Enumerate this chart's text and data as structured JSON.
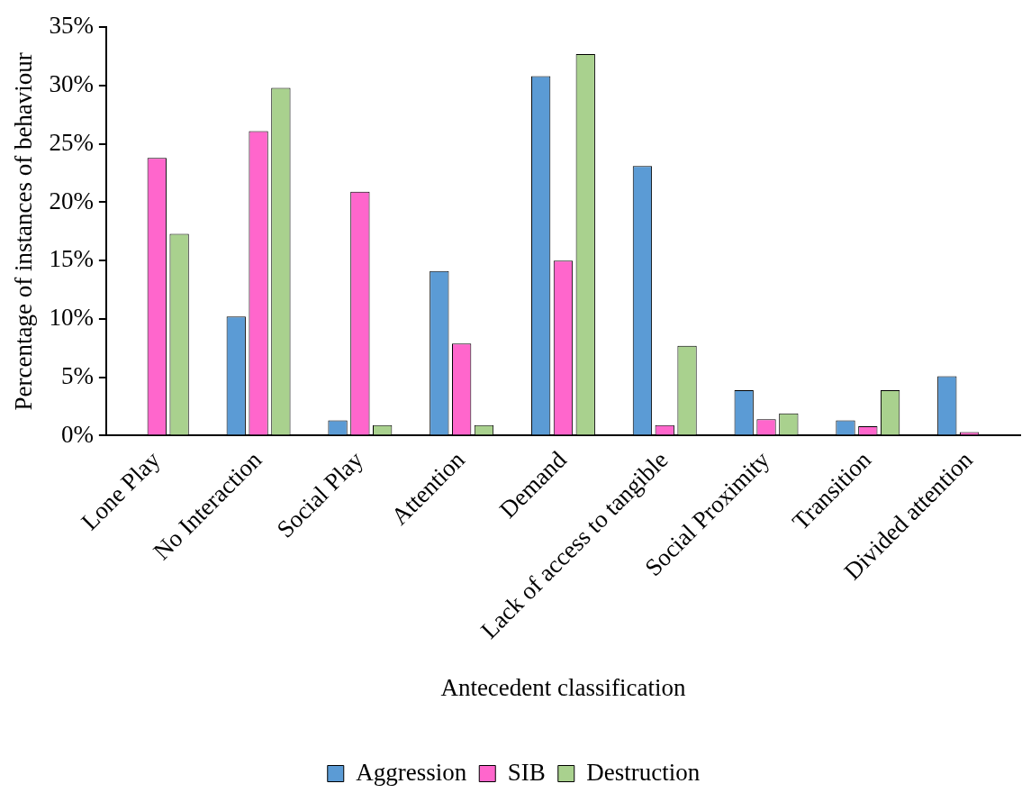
{
  "chart_data": {
    "type": "bar",
    "xlabel": "Antecedent classification",
    "ylabel": "Percentage of instances of behaviour",
    "categories": [
      "Lone Play",
      "No Interaction",
      "Social Play",
      "Attention",
      "Demand",
      "Lack of access to tangible",
      "Social Proximity",
      "Transition",
      "Divided attention"
    ],
    "series": [
      {
        "name": "Aggression",
        "color": "#5b9bd5",
        "values": [
          0,
          10.2,
          1.3,
          14.1,
          30.8,
          23.1,
          3.9,
          1.3,
          5.1
        ]
      },
      {
        "name": "SIB",
        "color": "#ff66cc",
        "values": [
          23.8,
          26.1,
          20.9,
          7.9,
          15.0,
          0.9,
          1.4,
          0.8,
          0.3
        ]
      },
      {
        "name": "Destruction",
        "color": "#a9d18e",
        "values": [
          17.3,
          29.8,
          0.9,
          0.9,
          32.7,
          7.7,
          1.9,
          3.9,
          0
        ]
      }
    ],
    "ylim": [
      0,
      35
    ],
    "yticks": [
      {
        "value": 0,
        "label": "0%"
      },
      {
        "value": 5,
        "label": "5%"
      },
      {
        "value": 10,
        "label": "10%"
      },
      {
        "value": 15,
        "label": "15%"
      },
      {
        "value": 20,
        "label": "20%"
      },
      {
        "value": 25,
        "label": "25%"
      },
      {
        "value": 30,
        "label": "30%"
      },
      {
        "value": 35,
        "label": "35%"
      }
    ],
    "grid": false,
    "legend": "bottom"
  }
}
